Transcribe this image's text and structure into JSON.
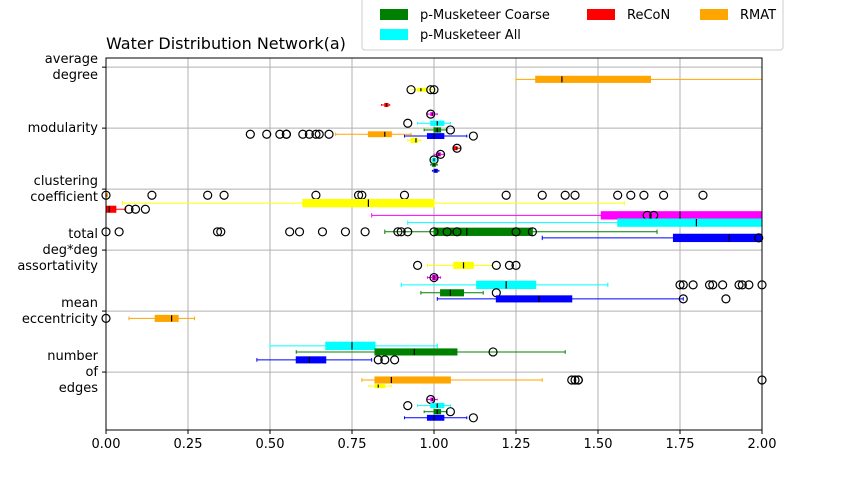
{
  "chart_data": {
    "type": "boxplot",
    "title": "Water Distribution Network(a)",
    "xlabel": "",
    "ylabel": "",
    "xlim": [
      0.0,
      2.0
    ],
    "xticks": [
      "0.00",
      "0.25",
      "0.50",
      "0.75",
      "1.00",
      "1.25",
      "1.50",
      "1.75",
      "2.00"
    ],
    "categories": [
      {
        "label": "average\ndegree",
        "y": 0
      },
      {
        "label": "modularity",
        "y": 1
      },
      {
        "label": "clustering\ncoefficient",
        "y": 2
      },
      {
        "label": "total\ndeg*deg\nassortativity",
        "y": 3
      },
      {
        "label": "mean\neccentricity",
        "y": 4
      },
      {
        "label": "number\nof\nedges",
        "y": 5
      }
    ],
    "legend": {
      "location": "top-right",
      "items": [
        {
          "name": "p-Musketeer Coarse",
          "color": "#008000"
        },
        {
          "name": "ReCoN",
          "color": "#ff0000"
        },
        {
          "name": "RMAT",
          "color": "#ffa500"
        },
        {
          "name": "p-Musketeer All",
          "color": "#00ffff"
        }
      ]
    },
    "series_colors": {
      "orange": "#ffa500",
      "red": "#ff0000",
      "yellow": "#ffff00",
      "magenta": "#ff00ff",
      "cyan": "#00ffff",
      "green": "#008000",
      "blue": "#0000ff"
    },
    "boxes": [
      {
        "series": "orange",
        "y": 0.2,
        "whisker_lo": 1.25,
        "q1": 1.31,
        "median": 1.39,
        "q3": 1.66,
        "whisker_hi": 2.0,
        "height": 0.1,
        "fliers": []
      },
      {
        "series": "yellow",
        "y": 0.37,
        "whisker_lo": 0.93,
        "q1": 0.95,
        "median": 0.96,
        "q3": 0.98,
        "whisker_hi": 1.0,
        "height": 0.05,
        "fliers": [
          0.93,
          0.99,
          1.0
        ]
      },
      {
        "series": "red",
        "y": 0.62,
        "whisker_lo": 0.84,
        "q1": 0.85,
        "median": 0.855,
        "q3": 0.86,
        "whisker_hi": 0.865,
        "height": 0.04,
        "fliers": []
      },
      {
        "series": "magenta",
        "y": 0.77,
        "whisker_lo": 0.98,
        "q1": 0.99,
        "median": 0.995,
        "q3": 1.0,
        "whisker_hi": 1.01,
        "height": 0.04,
        "fliers": [
          0.99
        ]
      },
      {
        "series": "cyan",
        "y": 0.92,
        "whisker_lo": 0.95,
        "q1": 0.99,
        "median": 1.01,
        "q3": 1.03,
        "whisker_hi": 1.05,
        "height": 0.07,
        "fliers": [
          0.92
        ]
      },
      {
        "series": "green",
        "y": 1.03,
        "whisker_lo": 0.97,
        "q1": 1.0,
        "median": 1.01,
        "q3": 1.02,
        "whisker_hi": 1.04,
        "height": 0.07,
        "fliers": [
          1.05
        ]
      },
      {
        "series": "blue",
        "y": 1.13,
        "whisker_lo": 0.91,
        "q1": 0.98,
        "median": 1.0,
        "q3": 1.03,
        "whisker_hi": 1.1,
        "height": 0.08,
        "fliers": [
          1.12
        ]
      },
      {
        "series": "orange",
        "y": 1.1,
        "whisker_lo": 0.7,
        "q1": 0.8,
        "median": 0.85,
        "q3": 0.87,
        "whisker_hi": 0.93,
        "height": 0.08,
        "fliers": [
          0.44,
          0.49,
          0.53,
          0.55,
          0.55,
          0.6,
          0.62,
          0.64,
          0.65,
          0.68
        ]
      },
      {
        "series": "yellow",
        "y": 1.2,
        "whisker_lo": 0.92,
        "q1": 0.93,
        "median": 0.945,
        "q3": 0.95,
        "whisker_hi": 0.96,
        "height": 0.07,
        "fliers": []
      },
      {
        "series": "red",
        "y": 1.33,
        "whisker_lo": 1.06,
        "q1": 1.06,
        "median": 1.07,
        "q3": 1.07,
        "whisker_hi": 1.08,
        "height": 0.04,
        "fliers": [
          1.07
        ]
      },
      {
        "series": "magenta",
        "y": 1.43,
        "whisker_lo": 1.0,
        "q1": 1.01,
        "median": 1.015,
        "q3": 1.02,
        "whisker_hi": 1.03,
        "height": 0.04,
        "fliers": [
          1.02
        ]
      },
      {
        "series": "cyan",
        "y": 1.52,
        "whisker_lo": 0.99,
        "q1": 0.995,
        "median": 1.0,
        "q3": 1.005,
        "whisker_hi": 1.01,
        "height": 0.04,
        "fliers": [
          1.0
        ]
      },
      {
        "series": "green",
        "y": 1.6,
        "whisker_lo": 0.99,
        "q1": 0.995,
        "median": 1.0,
        "q3": 1.005,
        "whisker_hi": 1.01,
        "height": 0.04,
        "fliers": []
      },
      {
        "series": "blue",
        "y": 1.7,
        "whisker_lo": 0.995,
        "q1": 1.0,
        "median": 1.005,
        "q3": 1.01,
        "whisker_hi": 1.015,
        "height": 0.04,
        "fliers": []
      },
      {
        "series": "red",
        "y": 2.33,
        "whisker_lo": 0.0,
        "q1": 0.0,
        "median": 0.01,
        "q3": 0.03,
        "whisker_hi": 0.06,
        "height": 0.1,
        "fliers": [
          0.07,
          0.09,
          0.12
        ]
      },
      {
        "series": "orange",
        "y": 2.1,
        "whisker_lo": 0.0,
        "q1": 0.0,
        "median": 0.0,
        "q3": 0.0,
        "whisker_hi": 0.0,
        "height": 0.05,
        "fliers": [
          0.0,
          0.14,
          0.31,
          0.36,
          0.64,
          0.77,
          0.78,
          0.91,
          1.22,
          1.33,
          1.4,
          1.43,
          1.56,
          1.6,
          1.64,
          1.7,
          1.82
        ]
      },
      {
        "series": "yellow",
        "y": 2.23,
        "whisker_lo": 0.05,
        "q1": 0.6,
        "median": 0.8,
        "q3": 1.0,
        "whisker_hi": 1.58,
        "height": 0.12,
        "fliers": []
      },
      {
        "series": "magenta",
        "y": 2.43,
        "whisker_lo": 0.81,
        "q1": 1.51,
        "median": 1.75,
        "q3": 2.0,
        "whisker_hi": 2.0,
        "height": 0.12,
        "fliers": [
          1.65,
          1.67
        ]
      },
      {
        "series": "cyan",
        "y": 2.55,
        "whisker_lo": 0.92,
        "q1": 1.56,
        "median": 1.8,
        "q3": 2.0,
        "whisker_hi": 2.0,
        "height": 0.12,
        "fliers": []
      },
      {
        "series": "green",
        "y": 2.7,
        "whisker_lo": 0.85,
        "q1": 1.0,
        "median": 1.1,
        "q3": 1.3,
        "whisker_hi": 1.68,
        "height": 0.12,
        "fliers": [
          0.0,
          0.04,
          0.34,
          0.35,
          0.56,
          0.59,
          0.66,
          0.73,
          0.79,
          0.89,
          0.9,
          0.92,
          1.0,
          1.04,
          1.07,
          1.25,
          1.3
        ]
      },
      {
        "series": "blue",
        "y": 2.8,
        "whisker_lo": 1.33,
        "q1": 1.73,
        "median": 1.9,
        "q3": 2.0,
        "whisker_hi": 2.0,
        "height": 0.12,
        "fliers": [
          1.99
        ]
      },
      {
        "series": "yellow",
        "y": 3.25,
        "whisker_lo": 0.98,
        "q1": 1.06,
        "median": 1.09,
        "q3": 1.12,
        "whisker_hi": 1.18,
        "height": 0.1,
        "fliers": [
          0.95,
          1.19,
          1.23,
          1.25
        ]
      },
      {
        "series": "magenta",
        "y": 3.45,
        "whisker_lo": 0.98,
        "q1": 0.995,
        "median": 1.0,
        "q3": 1.01,
        "whisker_hi": 1.02,
        "height": 0.07,
        "fliers": [
          1.0
        ]
      },
      {
        "series": "cyan",
        "y": 3.57,
        "whisker_lo": 0.9,
        "q1": 1.13,
        "median": 1.22,
        "q3": 1.31,
        "whisker_hi": 1.53,
        "height": 0.12,
        "fliers": [
          1.75,
          1.76,
          1.79,
          1.84,
          1.85,
          1.88,
          1.93,
          1.94,
          1.96,
          2.0
        ]
      },
      {
        "series": "green",
        "y": 3.7,
        "whisker_lo": 0.96,
        "q1": 1.02,
        "median": 1.05,
        "q3": 1.09,
        "whisker_hi": 1.15,
        "height": 0.1,
        "fliers": [
          1.19
        ]
      },
      {
        "series": "blue",
        "y": 3.8,
        "whisker_lo": 1.01,
        "q1": 1.19,
        "median": 1.32,
        "q3": 1.42,
        "whisker_hi": 1.76,
        "height": 0.1,
        "fliers": [
          1.76,
          1.89
        ]
      },
      {
        "series": "orange",
        "y": 4.12,
        "whisker_lo": 0.07,
        "q1": 0.15,
        "median": 0.2,
        "q3": 0.22,
        "whisker_hi": 0.27,
        "height": 0.1,
        "fliers": [
          0.0
        ]
      },
      {
        "series": "cyan",
        "y": 4.57,
        "whisker_lo": 0.5,
        "q1": 0.67,
        "median": 0.75,
        "q3": 0.82,
        "whisker_hi": 1.01,
        "height": 0.12,
        "fliers": []
      },
      {
        "series": "green",
        "y": 4.67,
        "whisker_lo": 0.58,
        "q1": 0.82,
        "median": 0.94,
        "q3": 1.07,
        "whisker_hi": 1.4,
        "height": 0.1,
        "fliers": [
          1.18
        ]
      },
      {
        "series": "blue",
        "y": 4.8,
        "whisker_lo": 0.46,
        "q1": 0.58,
        "median": 0.62,
        "q3": 0.67,
        "whisker_hi": 0.81,
        "height": 0.1,
        "fliers": [
          0.83,
          0.85,
          0.88
        ]
      },
      {
        "series": "orange",
        "y": 5.13,
        "whisker_lo": 0.78,
        "q1": 0.82,
        "median": 0.87,
        "q3": 1.05,
        "whisker_hi": 1.33,
        "height": 0.1,
        "fliers": [
          1.42,
          1.43,
          1.44,
          1.44,
          2.0
        ]
      },
      {
        "series": "yellow",
        "y": 5.23,
        "whisker_lo": 0.8,
        "q1": 0.82,
        "median": 0.83,
        "q3": 0.85,
        "whisker_hi": 0.87,
        "height": 0.05,
        "fliers": []
      },
      {
        "series": "magenta",
        "y": 5.45,
        "whisker_lo": 0.98,
        "q1": 0.99,
        "median": 0.995,
        "q3": 1.0,
        "whisker_hi": 1.01,
        "height": 0.04,
        "fliers": [
          0.99
        ]
      },
      {
        "series": "cyan",
        "y": 5.55,
        "whisker_lo": 0.95,
        "q1": 0.99,
        "median": 1.01,
        "q3": 1.03,
        "whisker_hi": 1.05,
        "height": 0.07,
        "fliers": [
          0.92
        ]
      },
      {
        "series": "green",
        "y": 5.65,
        "whisker_lo": 0.97,
        "q1": 1.0,
        "median": 1.01,
        "q3": 1.02,
        "whisker_hi": 1.04,
        "height": 0.07,
        "fliers": [
          1.05
        ]
      },
      {
        "series": "blue",
        "y": 5.75,
        "whisker_lo": 0.91,
        "q1": 0.98,
        "median": 1.0,
        "q3": 1.03,
        "whisker_hi": 1.1,
        "height": 0.08,
        "fliers": [
          1.12
        ]
      }
    ]
  }
}
